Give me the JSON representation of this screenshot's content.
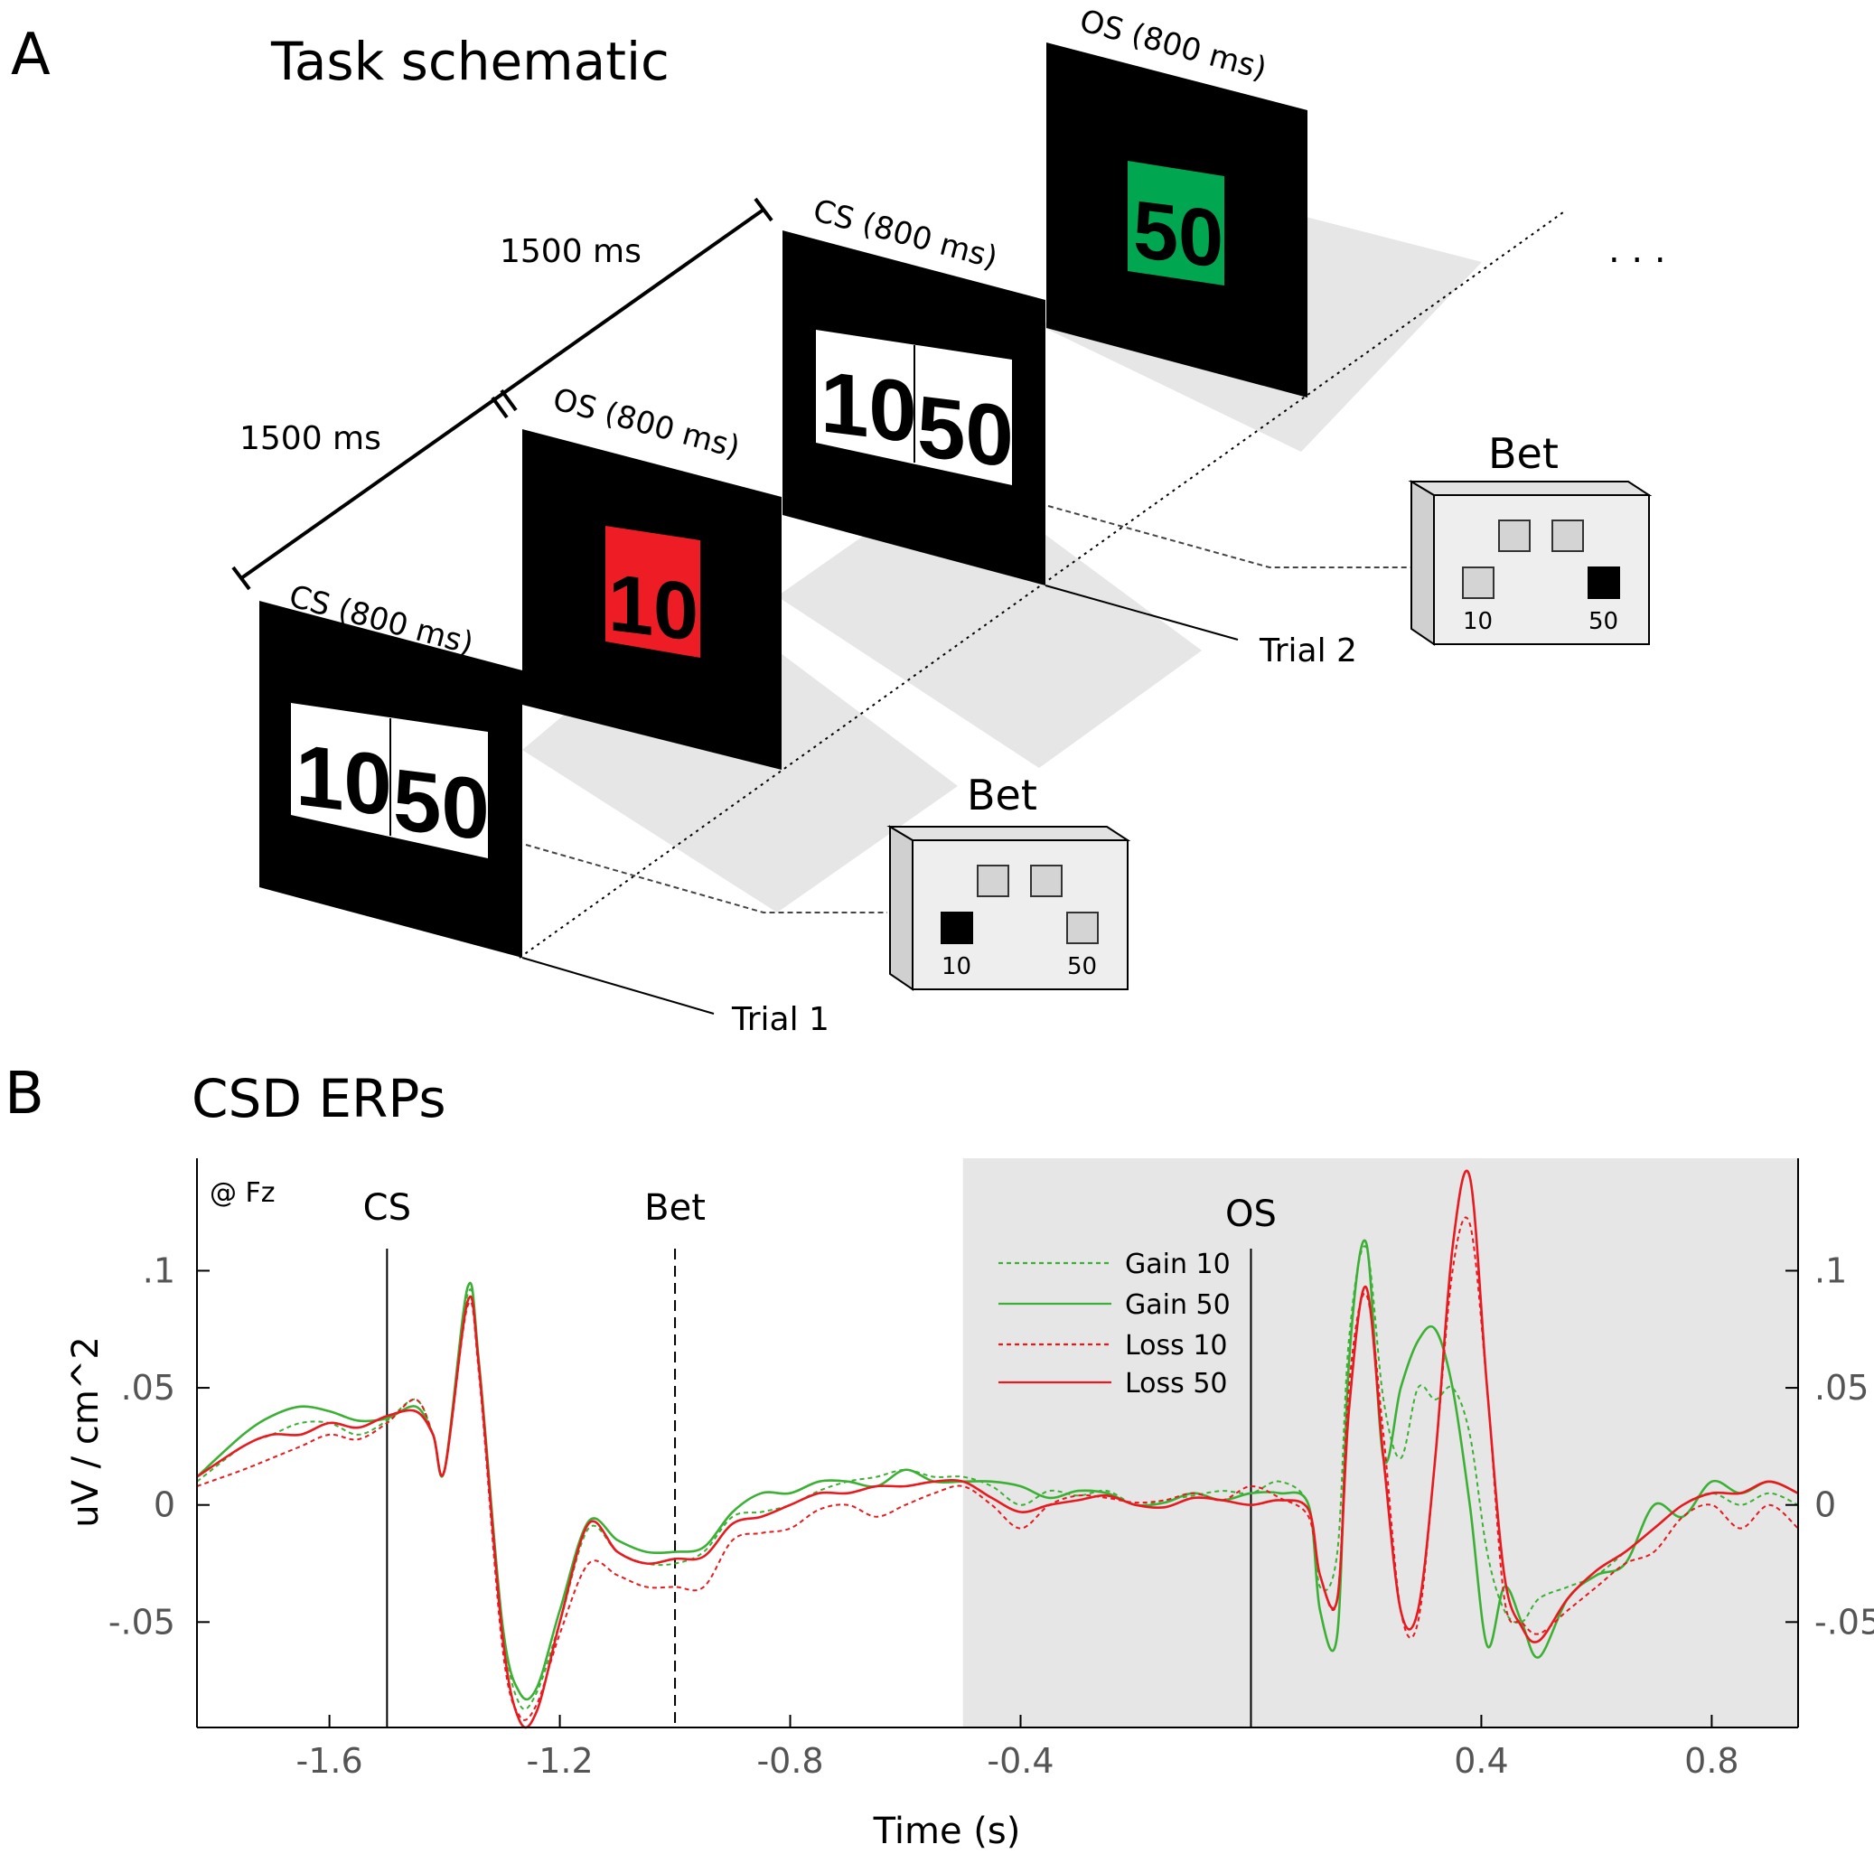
{
  "panel_a": {
    "letter": "A",
    "title": "Task schematic",
    "screens": {
      "cs1_label": "CS (800 ms)",
      "os1_label": "OS (800 ms)",
      "cs2_label": "CS (800 ms)",
      "os2_label": "OS (800 ms)",
      "cs_left_value": "10",
      "cs_right_value": "50",
      "os1_value": "10",
      "os2_value": "50",
      "os1_color": "#ee1c25",
      "os2_color": "#00a650"
    },
    "durations": [
      "1500 ms",
      "1500 ms"
    ],
    "ellipsis": ". . .",
    "trials": [
      "Trial 1",
      "Trial 2"
    ],
    "bet_boxes": [
      {
        "label": "Bet",
        "left": "10",
        "right": "50",
        "selected": "10"
      },
      {
        "label": "Bet",
        "left": "10",
        "right": "50",
        "selected": "50"
      }
    ]
  },
  "panel_b": {
    "letter": "B",
    "title": "CSD ERPs",
    "channel": "@ Fz",
    "event_labels": [
      "CS",
      "Bet",
      "OS"
    ],
    "legend": [
      "Gain 10",
      "Gain 50",
      "Loss 10",
      "Loss 50"
    ]
  },
  "chart_data": {
    "type": "line",
    "xlabel": "Time (s)",
    "ylabel": "uV / cm^2",
    "xlim": [
      -1.83,
      0.95
    ],
    "ylim": [
      -0.095,
      0.148
    ],
    "xticks": [
      -1.6,
      -1.2,
      -0.8,
      -0.4,
      0.4,
      0.8
    ],
    "xtick_labels": [
      "-1.6",
      "-1.2",
      "-0.8",
      "-0.4",
      "0.4",
      "0.8"
    ],
    "yticks": [
      0.1,
      0.05,
      0,
      -0.05
    ],
    "ytick_labels": [
      ".1",
      ".05",
      "0",
      "-.05"
    ],
    "event_lines": [
      {
        "name": "CS",
        "x": -1.5,
        "style": "solid"
      },
      {
        "name": "Bet",
        "x": -1.0,
        "style": "dashed"
      },
      {
        "name": "OS",
        "x": 0.0,
        "style": "solid"
      }
    ],
    "shaded_region": [
      -0.5,
      0.95
    ],
    "x": [
      -1.83,
      -1.75,
      -1.7,
      -1.65,
      -1.6,
      -1.55,
      -1.5,
      -1.45,
      -1.42,
      -1.4,
      -1.36,
      -1.34,
      -1.3,
      -1.27,
      -1.24,
      -1.2,
      -1.15,
      -1.1,
      -1.05,
      -1.0,
      -0.95,
      -0.9,
      -0.85,
      -0.8,
      -0.75,
      -0.7,
      -0.65,
      -0.6,
      -0.55,
      -0.5,
      -0.45,
      -0.4,
      -0.35,
      -0.3,
      -0.25,
      -0.2,
      -0.15,
      -0.1,
      -0.05,
      0.0,
      0.05,
      0.1,
      0.12,
      0.15,
      0.17,
      0.2,
      0.23,
      0.26,
      0.29,
      0.32,
      0.35,
      0.38,
      0.41,
      0.44,
      0.47,
      0.5,
      0.55,
      0.6,
      0.65,
      0.7,
      0.75,
      0.8,
      0.85,
      0.9,
      0.95
    ],
    "series": [
      {
        "name": "Gain 10",
        "color": "#3cb035",
        "dash": "dashed",
        "values": [
          0.01,
          0.025,
          0.03,
          0.035,
          0.035,
          0.03,
          0.036,
          0.045,
          0.03,
          0.015,
          0.09,
          0.06,
          -0.05,
          -0.085,
          -0.08,
          -0.05,
          -0.01,
          -0.02,
          -0.025,
          -0.025,
          -0.02,
          -0.005,
          -0.003,
          0.0,
          0.006,
          0.01,
          0.012,
          0.015,
          0.012,
          0.012,
          0.008,
          0.0,
          0.006,
          0.004,
          0.006,
          0.0,
          0.002,
          0.004,
          0.006,
          0.005,
          0.01,
          0.0,
          -0.035,
          -0.02,
          0.07,
          0.11,
          0.045,
          0.02,
          0.05,
          0.045,
          0.05,
          0.03,
          -0.02,
          -0.045,
          -0.05,
          -0.04,
          -0.035,
          -0.03,
          -0.02,
          -0.01,
          0.0,
          0.005,
          0.0,
          0.005,
          0.0
        ]
      },
      {
        "name": "Gain 50",
        "color": "#3cb035",
        "dash": "solid",
        "values": [
          0.012,
          0.03,
          0.038,
          0.042,
          0.04,
          0.036,
          0.037,
          0.042,
          0.03,
          0.015,
          0.093,
          0.06,
          -0.05,
          -0.08,
          -0.078,
          -0.045,
          -0.007,
          -0.015,
          -0.02,
          -0.02,
          -0.018,
          -0.003,
          0.005,
          0.005,
          0.01,
          0.01,
          0.008,
          0.015,
          0.01,
          0.01,
          0.01,
          0.008,
          0.003,
          0.006,
          0.005,
          0.0,
          0.001,
          0.005,
          0.002,
          0.005,
          0.005,
          0.0,
          -0.045,
          -0.055,
          0.06,
          0.112,
          0.02,
          0.05,
          0.07,
          0.075,
          0.05,
          0.0,
          -0.06,
          -0.035,
          -0.05,
          -0.065,
          -0.04,
          -0.03,
          -0.025,
          0.0,
          -0.005,
          0.01,
          0.005,
          0.01,
          0.005
        ]
      },
      {
        "name": "Loss 10",
        "color": "#e8191f",
        "dash": "dashed",
        "values": [
          0.008,
          0.015,
          0.02,
          0.025,
          0.03,
          0.028,
          0.035,
          0.045,
          0.03,
          0.015,
          0.085,
          0.055,
          -0.06,
          -0.09,
          -0.085,
          -0.055,
          -0.025,
          -0.03,
          -0.035,
          -0.035,
          -0.035,
          -0.015,
          -0.012,
          -0.01,
          -0.002,
          0.0,
          -0.005,
          0.0,
          0.005,
          0.008,
          0.0,
          -0.01,
          0.0,
          0.004,
          0.003,
          0.001,
          0.002,
          0.005,
          0.002,
          0.008,
          0.003,
          -0.005,
          -0.03,
          -0.04,
          0.05,
          0.09,
          0.03,
          -0.045,
          -0.05,
          0.02,
          0.1,
          0.12,
          0.05,
          -0.04,
          -0.05,
          -0.055,
          -0.045,
          -0.035,
          -0.025,
          -0.02,
          -0.005,
          0.0,
          -0.01,
          0.0,
          -0.01
        ]
      },
      {
        "name": "Loss 50",
        "color": "#e8191f",
        "dash": "solid",
        "values": [
          0.012,
          0.025,
          0.03,
          0.03,
          0.035,
          0.033,
          0.038,
          0.04,
          0.03,
          0.015,
          0.087,
          0.058,
          -0.055,
          -0.092,
          -0.088,
          -0.05,
          -0.008,
          -0.02,
          -0.025,
          -0.023,
          -0.022,
          -0.008,
          -0.005,
          0.0,
          0.005,
          0.005,
          0.008,
          0.008,
          0.01,
          0.01,
          0.003,
          -0.003,
          0.0,
          0.002,
          0.004,
          0.0,
          -0.001,
          0.003,
          0.002,
          0.0,
          0.002,
          -0.002,
          -0.03,
          -0.04,
          0.04,
          0.093,
          0.02,
          -0.045,
          -0.045,
          0.02,
          0.11,
          0.14,
          0.05,
          -0.03,
          -0.052,
          -0.058,
          -0.04,
          -0.028,
          -0.02,
          -0.01,
          0.0,
          0.005,
          0.005,
          0.01,
          0.005
        ]
      }
    ]
  }
}
